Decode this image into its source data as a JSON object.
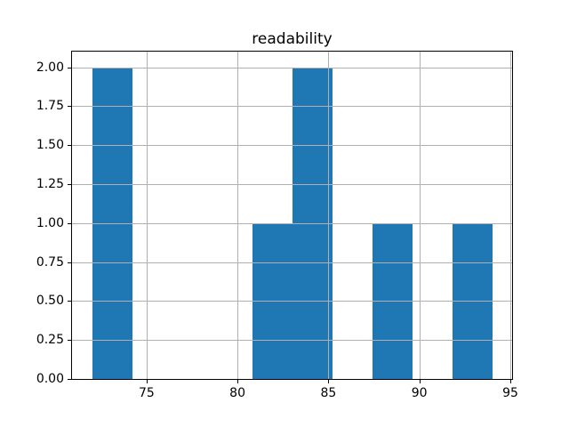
{
  "window": {
    "background": "#ffffff"
  },
  "chart_data": {
    "type": "histogram",
    "title": "readability",
    "xlabel": "",
    "ylabel": "",
    "bin_edges": [
      72.0,
      74.2,
      76.4,
      78.6,
      80.8,
      83.0,
      85.2,
      87.4,
      89.6,
      91.8,
      94.0
    ],
    "counts": [
      2,
      0,
      0,
      0,
      1,
      2,
      0,
      1,
      0,
      1
    ],
    "xlim": [
      70.9,
      95.1
    ],
    "ylim": [
      0.0,
      2.1
    ],
    "xticks": [
      75,
      80,
      85,
      90,
      95
    ],
    "xtick_labels": [
      "75",
      "80",
      "85",
      "90",
      "95"
    ],
    "yticks": [
      0.0,
      0.25,
      0.5,
      0.75,
      1.0,
      1.25,
      1.5,
      1.75,
      2.0
    ],
    "ytick_labels": [
      "0.00",
      "0.25",
      "0.50",
      "0.75",
      "1.00",
      "1.25",
      "1.50",
      "1.75",
      "2.00"
    ],
    "grid": true,
    "legend_position": "none",
    "colors": {
      "bar": "#1f77b4",
      "grid": "#b0b0b0",
      "spine": "#000000",
      "text": "#000000",
      "background": "#ffffff"
    }
  }
}
